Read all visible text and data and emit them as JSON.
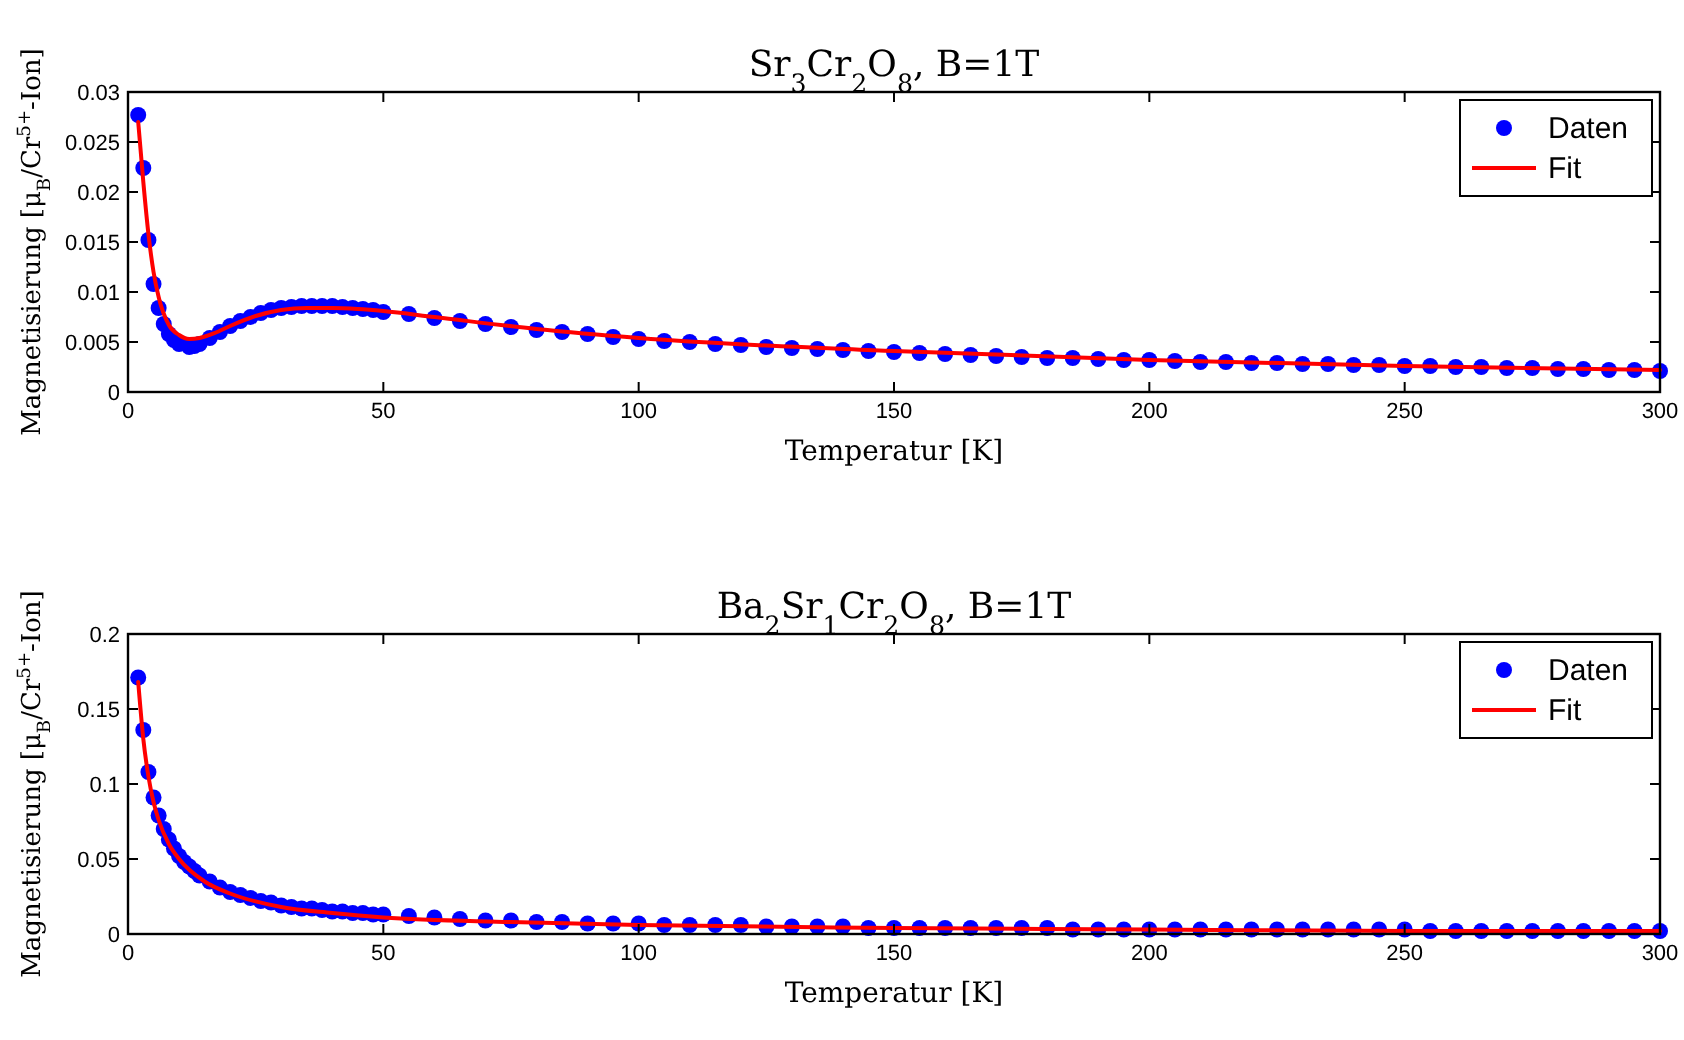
{
  "chart_data": [
    {
      "type": "scatter",
      "title": "Sr$_{3}$Cr$_{2}$O$_{8}$, B=1T",
      "xlabel": "Temperatur [K]",
      "ylabel": "Magnetisierung [μ$_{B}$/Cr$^{5+}$-Ion]",
      "xlim": [
        0,
        300
      ],
      "ylim": [
        0,
        0.03
      ],
      "xticks": [
        0,
        50,
        100,
        150,
        200,
        250,
        300
      ],
      "yticks": [
        0,
        0.005,
        0.01,
        0.015,
        0.02,
        0.025,
        0.03
      ],
      "grid": false,
      "legend": "top right",
      "series": [
        {
          "name": "Daten",
          "marker": "circle",
          "color": "#0000ff",
          "x": [
            2,
            3,
            4,
            5,
            6,
            7,
            8,
            9,
            10,
            12,
            13,
            14,
            16,
            18,
            20,
            22,
            24,
            26,
            28,
            30,
            32,
            34,
            36,
            38,
            40,
            42,
            44,
            46,
            48,
            50,
            55,
            60,
            65,
            70,
            75,
            80,
            85,
            90,
            95,
            100,
            105,
            110,
            115,
            120,
            125,
            130,
            135,
            140,
            145,
            150,
            155,
            160,
            165,
            170,
            175,
            180,
            185,
            190,
            195,
            200,
            205,
            210,
            215,
            220,
            225,
            230,
            235,
            240,
            245,
            250,
            255,
            260,
            265,
            270,
            275,
            280,
            285,
            290,
            295,
            300
          ],
          "values": [
            0.0277,
            0.0224,
            0.0152,
            0.0108,
            0.0084,
            0.0068,
            0.0058,
            0.0052,
            0.0048,
            0.0045,
            0.0046,
            0.0048,
            0.0054,
            0.006,
            0.0066,
            0.0071,
            0.0075,
            0.0079,
            0.0082,
            0.0084,
            0.0085,
            0.0086,
            0.0086,
            0.0086,
            0.0086,
            0.0085,
            0.0084,
            0.0083,
            0.0082,
            0.008,
            0.0078,
            0.0074,
            0.0071,
            0.0068,
            0.0065,
            0.0062,
            0.006,
            0.0058,
            0.0055,
            0.0053,
            0.0051,
            0.005,
            0.0048,
            0.0047,
            0.0045,
            0.0044,
            0.0043,
            0.0042,
            0.0041,
            0.004,
            0.0039,
            0.0038,
            0.0037,
            0.0036,
            0.0035,
            0.0034,
            0.0034,
            0.0033,
            0.0032,
            0.0032,
            0.0031,
            0.003,
            0.003,
            0.0029,
            0.0029,
            0.0028,
            0.0028,
            0.0027,
            0.0027,
            0.0026,
            0.0026,
            0.0025,
            0.0025,
            0.0024,
            0.0024,
            0.0023,
            0.0023,
            0.0022,
            0.0022,
            0.0021
          ]
        },
        {
          "name": "Fit",
          "type": "line",
          "line_style": "solid",
          "marker": "none",
          "color": "#ff0000",
          "x": [
            2,
            3,
            4,
            5,
            6,
            8,
            10,
            12,
            14,
            17,
            20,
            25,
            30,
            35,
            40,
            45,
            50,
            60,
            80,
            100,
            150,
            200,
            250,
            300
          ],
          "values": [
            0.027,
            0.021,
            0.0158,
            0.012,
            0.0095,
            0.0067,
            0.0057,
            0.0053,
            0.0054,
            0.0059,
            0.0066,
            0.0076,
            0.0082,
            0.0084,
            0.0084,
            0.0083,
            0.0081,
            0.0075,
            0.0063,
            0.0054,
            0.0041,
            0.0032,
            0.0026,
            0.0022
          ]
        }
      ]
    },
    {
      "type": "scatter",
      "title": "Ba$_{2}$Sr$_{1}$Cr$_{2}$O$_{8}$, B=1T",
      "xlabel": "Temperatur [K]",
      "ylabel": "Magnetisierung [μ$_{B}$/Cr$^{5+}$-Ion]",
      "xlim": [
        0,
        300
      ],
      "ylim": [
        0,
        0.2
      ],
      "xticks": [
        0,
        50,
        100,
        150,
        200,
        250,
        300
      ],
      "yticks": [
        0,
        0.05,
        0.1,
        0.15,
        0.2
      ],
      "grid": false,
      "legend": "top right",
      "series": [
        {
          "name": "Daten",
          "marker": "circle",
          "color": "#0000ff",
          "x": [
            2,
            3,
            4,
            5,
            6,
            7,
            8,
            9,
            10,
            11,
            12,
            13,
            14,
            16,
            18,
            20,
            22,
            24,
            26,
            28,
            30,
            32,
            34,
            36,
            38,
            40,
            42,
            44,
            46,
            48,
            50,
            55,
            60,
            65,
            70,
            75,
            80,
            85,
            90,
            95,
            100,
            105,
            110,
            115,
            120,
            125,
            130,
            135,
            140,
            145,
            150,
            155,
            160,
            165,
            170,
            175,
            180,
            185,
            190,
            195,
            200,
            205,
            210,
            215,
            220,
            225,
            230,
            235,
            240,
            245,
            250,
            255,
            260,
            265,
            270,
            275,
            280,
            285,
            290,
            295,
            300
          ],
          "values": [
            0.171,
            0.136,
            0.108,
            0.091,
            0.079,
            0.07,
            0.063,
            0.057,
            0.052,
            0.048,
            0.045,
            0.042,
            0.039,
            0.035,
            0.031,
            0.028,
            0.026,
            0.024,
            0.022,
            0.021,
            0.019,
            0.018,
            0.017,
            0.017,
            0.016,
            0.015,
            0.015,
            0.014,
            0.014,
            0.013,
            0.013,
            0.012,
            0.011,
            0.01,
            0.009,
            0.009,
            0.008,
            0.008,
            0.007,
            0.007,
            0.007,
            0.006,
            0.006,
            0.006,
            0.006,
            0.005,
            0.005,
            0.005,
            0.005,
            0.004,
            0.004,
            0.004,
            0.004,
            0.004,
            0.004,
            0.004,
            0.004,
            0.003,
            0.003,
            0.003,
            0.003,
            0.003,
            0.003,
            0.003,
            0.003,
            0.003,
            0.003,
            0.003,
            0.003,
            0.003,
            0.003,
            0.002,
            0.002,
            0.002,
            0.002,
            0.002,
            0.002,
            0.002,
            0.002,
            0.002,
            0.002
          ]
        },
        {
          "name": "Fit",
          "type": "line",
          "line_style": "solid",
          "marker": "none",
          "color": "#ff0000",
          "x": [
            2,
            3,
            4,
            5,
            6,
            8,
            10,
            15,
            20,
            30,
            40,
            50,
            75,
            100,
            150,
            200,
            250,
            300
          ],
          "values": [
            0.168,
            0.13,
            0.105,
            0.088,
            0.076,
            0.06,
            0.05,
            0.035,
            0.027,
            0.018,
            0.014,
            0.011,
            0.008,
            0.006,
            0.004,
            0.003,
            0.002,
            0.002
          ]
        }
      ]
    }
  ]
}
